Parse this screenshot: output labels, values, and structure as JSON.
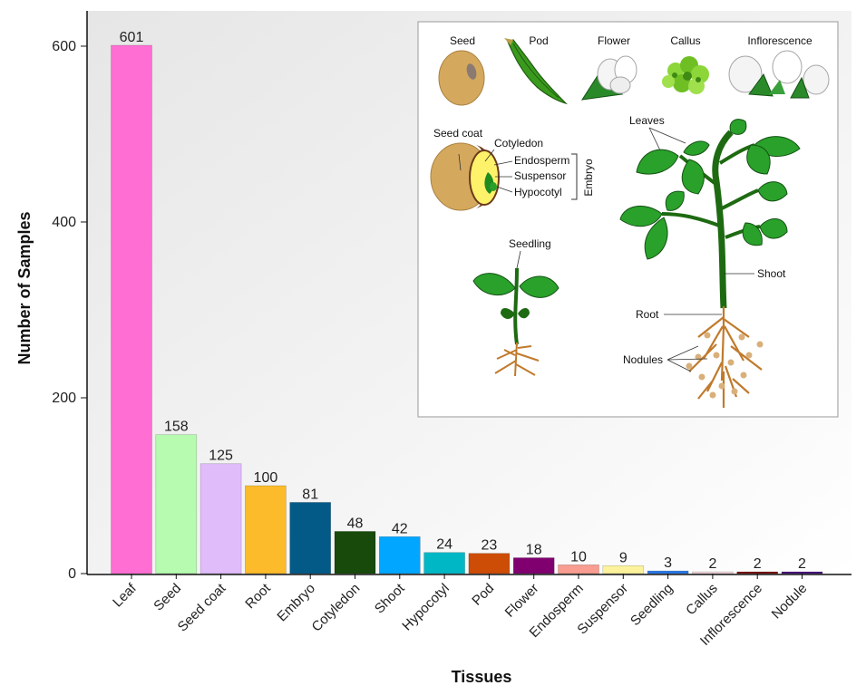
{
  "chart_data": {
    "type": "bar",
    "title": "",
    "xlabel": "Tissues",
    "ylabel": "Number of Samples",
    "ylim": [
      0,
      640
    ],
    "yticks": [
      0,
      200,
      400,
      600
    ],
    "categories": [
      "Leaf",
      "Seed",
      "Seed coat",
      "Root",
      "Embryo",
      "Cotyledon",
      "Shoot",
      "Hypocotyl",
      "Pod",
      "Flower",
      "Endosperm",
      "Suspensor",
      "Seedling",
      "Callus",
      "Inflorescence",
      "Nodule"
    ],
    "values": [
      601,
      158,
      125,
      100,
      81,
      48,
      42,
      24,
      23,
      18,
      10,
      9,
      3,
      2,
      2,
      2
    ],
    "colors": [
      "#ff6fd3",
      "#b6fbb0",
      "#e0bcfb",
      "#fbbb2b",
      "#035a87",
      "#174a0b",
      "#00a6ff",
      "#00b7c6",
      "#cd4c06",
      "#800070",
      "#f99d90",
      "#fcf29b",
      "#2877e9",
      "#f7d9dd",
      "#7a0a0a",
      "#430b7e"
    ],
    "grid": false,
    "legend": "none"
  },
  "inset": {
    "top_row": [
      "Seed",
      "Pod",
      "Flower",
      "Callus",
      "Inflorescence"
    ],
    "seed_parts": [
      "Seed coat",
      "Cotyledon",
      "Endosperm",
      "Suspensor",
      "Hypocotyl"
    ],
    "embryo_label": "Embryo",
    "seedling_label": "Seedling",
    "plant_parts": [
      "Leaves",
      "Shoot",
      "Root",
      "Nodules"
    ],
    "colors": {
      "seed": "#d4a95e",
      "pod": "#3a9a1e",
      "leaf": "#1f9a1f",
      "stem": "#1e6a12",
      "root": "#c07a2c",
      "callus": "#8cd63a"
    }
  }
}
